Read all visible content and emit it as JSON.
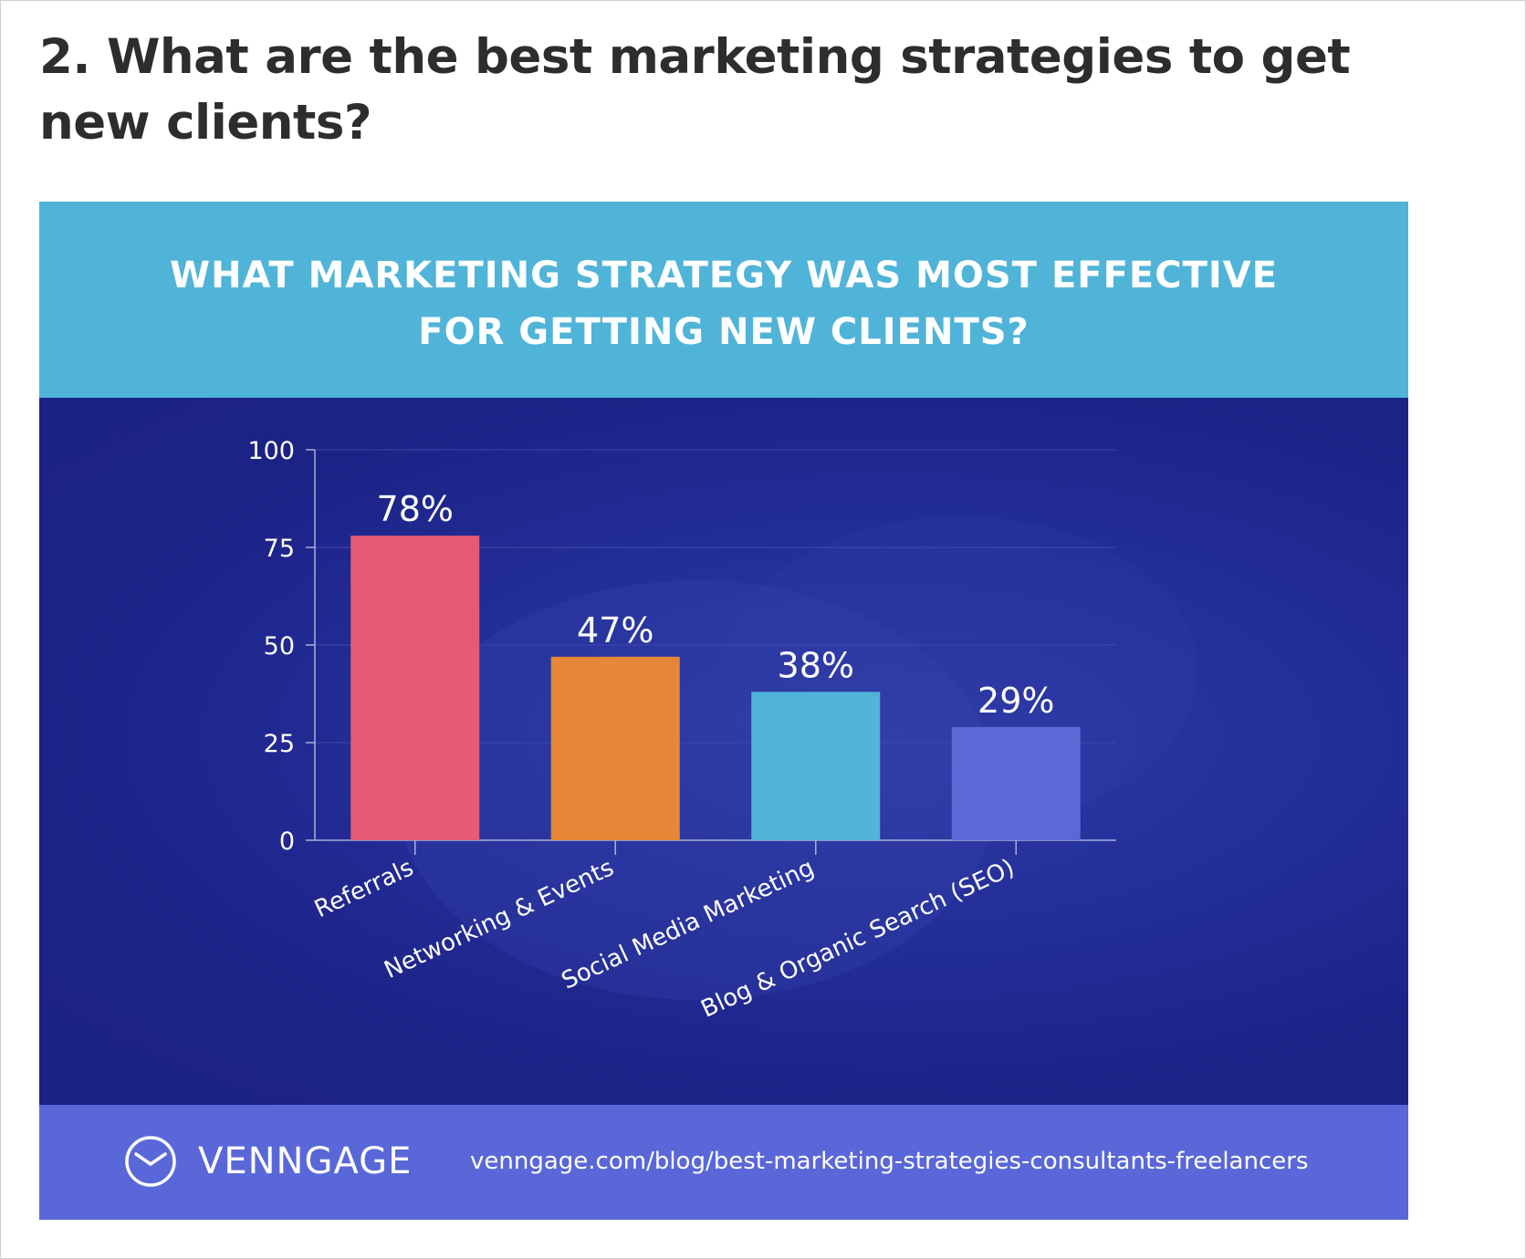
{
  "heading": "2. What are the best marketing strategies to get new clients?",
  "banner": {
    "title_line1": "WHAT MARKETING STRATEGY WAS MOST EFFECTIVE",
    "title_line2": "FOR GETTING NEW CLIENTS?",
    "color": "#50b4d8"
  },
  "footer": {
    "brand": "VENNGAGE",
    "url": "venngage.com/blog/best-marketing-strategies-consultants-freelancers",
    "logo_icon": "clock-circle-icon",
    "color": "#5a67d8"
  },
  "chart_data": {
    "type": "bar",
    "title": "WHAT MARKETING STRATEGY WAS MOST EFFECTIVE FOR GETTING NEW CLIENTS?",
    "categories": [
      "Referrals",
      "Networking & Events",
      "Social Media Marketing",
      "Blog & Organic Search (SEO)"
    ],
    "values": [
      78,
      47,
      38,
      29
    ],
    "value_labels": [
      "78%",
      "47%",
      "38%",
      "29%"
    ],
    "bar_colors": [
      "#e55a75",
      "#e68737",
      "#50b4d8",
      "#5b68d6"
    ],
    "ylim": [
      0,
      100
    ],
    "yticks": [
      0,
      25,
      50,
      75,
      100
    ],
    "ytick_labels": [
      "0",
      "25",
      "50",
      "75",
      "100"
    ],
    "grid": true,
    "legend": false,
    "xlabel": "",
    "ylabel": ""
  }
}
